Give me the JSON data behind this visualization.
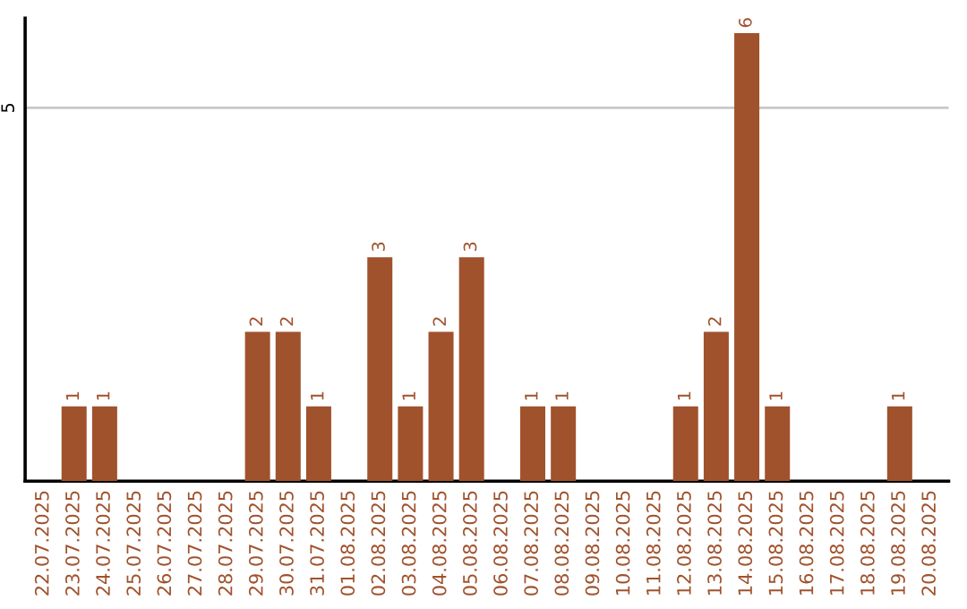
{
  "chart_data": {
    "type": "bar",
    "categories": [
      "22.07.2025",
      "23.07.2025",
      "24.07.2025",
      "25.07.2025",
      "26.07.2025",
      "27.07.2025",
      "28.07.2025",
      "29.07.2025",
      "30.07.2025",
      "31.07.2025",
      "01.08.2025",
      "02.08.2025",
      "03.08.2025",
      "04.08.2025",
      "05.08.2025",
      "06.08.2025",
      "07.08.2025",
      "08.08.2025",
      "09.08.2025",
      "10.08.2025",
      "11.08.2025",
      "12.08.2025",
      "13.08.2025",
      "14.08.2025",
      "15.08.2025",
      "16.08.2025",
      "17.08.2025",
      "18.08.2025",
      "19.08.2025",
      "20.08.2025"
    ],
    "values": [
      0,
      1,
      1,
      0,
      0,
      0,
      0,
      2,
      2,
      1,
      0,
      3,
      1,
      2,
      3,
      0,
      1,
      1,
      0,
      0,
      0,
      1,
      2,
      6,
      1,
      0,
      0,
      0,
      1,
      0
    ],
    "value_labels": [
      null,
      "1",
      "1",
      null,
      null,
      null,
      null,
      "2",
      "2",
      "1",
      null,
      "3",
      "1",
      "2",
      "3",
      null,
      "1",
      "1",
      null,
      null,
      null,
      "1",
      "2",
      "6",
      "1",
      null,
      null,
      null,
      "1",
      null
    ],
    "color": "#a0522d",
    "ylim": [
      0,
      6.2
    ],
    "yticks": [
      5
    ],
    "grid": "y"
  }
}
